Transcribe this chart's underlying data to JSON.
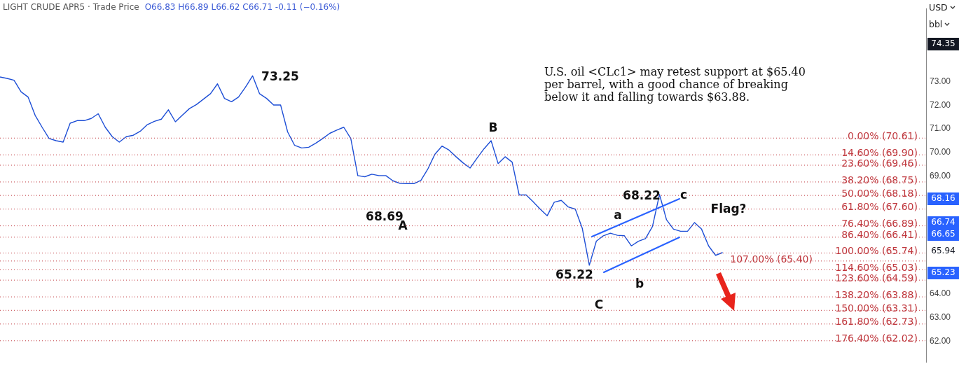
{
  "chart_data": {
    "type": "line",
    "title": "LIGHT CRUDE APR5 · Trade Price",
    "subtitle": "O66.83  H66.89  L66.62  C66.71  -0.11 (−0.16%)",
    "categories": [
      null,
      null,
      null,
      null,
      null,
      null,
      null,
      null,
      null,
      null,
      null,
      null,
      null,
      null,
      null,
      null,
      null,
      null,
      null,
      null,
      null,
      null,
      null,
      null,
      null,
      null,
      null,
      null,
      null,
      null,
      null,
      null,
      null,
      null,
      null,
      null,
      null,
      null,
      null,
      null,
      null,
      null,
      null,
      null,
      null,
      null,
      null,
      null,
      null,
      null,
      null,
      null,
      null,
      null,
      null,
      null,
      null,
      null,
      null,
      null,
      null,
      null,
      null,
      null,
      null,
      null,
      null,
      null,
      null,
      null,
      null,
      null,
      null,
      null,
      null,
      null,
      null,
      null,
      null,
      null,
      null,
      null,
      null,
      null,
      null,
      null,
      null,
      null,
      null,
      null,
      null,
      null,
      null,
      null,
      null,
      null,
      null,
      null,
      null,
      null,
      null,
      null,
      null,
      null,
      null,
      null,
      null,
      null,
      null,
      null,
      null,
      null,
      null,
      null,
      null,
      null,
      null,
      null,
      null,
      null,
      null,
      null,
      null,
      null,
      null,
      null,
      null,
      null,
      null,
      null,
      null,
      null,
      null
    ],
    "ylim": [
      61.1,
      76.1
    ],
    "yticks": [
      {
        "value": 62,
        "label": "62.00"
      },
      {
        "value": 63,
        "label": "63.00"
      },
      {
        "value": 64,
        "label": "64.00"
      },
      {
        "value": 69,
        "label": "69.00"
      },
      {
        "value": 70,
        "label": "70.00"
      },
      {
        "value": 71,
        "label": "71.00"
      },
      {
        "value": 72,
        "label": "72.00"
      },
      {
        "value": 73,
        "label": "73.00"
      }
    ],
    "tick_labels": "y",
    "marker": "none",
    "series": [
      {
        "color": "#1e4fd6",
        "values": [
          73.2,
          73.14,
          73.06,
          72.57,
          72.35,
          71.58,
          71.07,
          70.59,
          70.5,
          70.44,
          71.24,
          71.35,
          71.35,
          71.44,
          71.64,
          71.07,
          70.67,
          70.44,
          70.67,
          70.73,
          70.9,
          71.18,
          71.32,
          71.41,
          71.81,
          71.3,
          71.58,
          71.86,
          72.03,
          72.26,
          72.49,
          72.91,
          72.29,
          72.15,
          72.35,
          72.77,
          73.25,
          72.49,
          72.29,
          72.01,
          72.01,
          70.87,
          70.3,
          70.19,
          70.22,
          70.39,
          70.59,
          70.81,
          70.95,
          71.07,
          70.59,
          69.02,
          68.97,
          69.08,
          69.02,
          69.02,
          68.8,
          68.69,
          68.68,
          68.68,
          68.82,
          69.31,
          69.93,
          70.27,
          70.1,
          69.82,
          69.56,
          69.34,
          69.76,
          70.16,
          70.5,
          69.53,
          69.82,
          69.59,
          68.2,
          68.2,
          67.91,
          67.6,
          67.32,
          67.89,
          67.97,
          67.69,
          67.6,
          66.78,
          65.22,
          66.24,
          66.47,
          66.58,
          66.49,
          66.47,
          66.04,
          66.24,
          66.35,
          66.86,
          68.22,
          67.15,
          66.75,
          66.66,
          66.66,
          67.03,
          66.75,
          66.04,
          65.64,
          65.76,
          null,
          null,
          null,
          null,
          null,
          null,
          null,
          null,
          null,
          null,
          null,
          null,
          null,
          null,
          null,
          null,
          null,
          null,
          null,
          null,
          null,
          null,
          null,
          null,
          null,
          null,
          null,
          null,
          null
        ]
      }
    ],
    "ref_lines": [
      {
        "axis": "y",
        "value": 70.61,
        "label": "0.00% (70.61)",
        "color": "#c0393f",
        "line_style": "dotted"
      },
      {
        "axis": "y",
        "value": 69.9,
        "label": "14.60% (69.90)",
        "color": "#c0393f",
        "line_style": "dotted"
      },
      {
        "axis": "y",
        "value": 69.46,
        "label": "23.60% (69.46)",
        "color": "#c0393f",
        "line_style": "dotted"
      },
      {
        "axis": "y",
        "value": 68.75,
        "label": "38.20% (68.75)",
        "color": "#c0393f",
        "line_style": "dotted"
      },
      {
        "axis": "y",
        "value": 68.18,
        "label": "50.00% (68.18)",
        "color": "#c0393f",
        "line_style": "dotted"
      },
      {
        "axis": "y",
        "value": 67.6,
        "label": "61.80% (67.60)",
        "color": "#c0393f",
        "line_style": "dotted"
      },
      {
        "axis": "y",
        "value": 66.89,
        "label": "76.40% (66.89)",
        "color": "#c0393f",
        "line_style": "dotted"
      },
      {
        "axis": "y",
        "value": 66.41,
        "label": "86.40% (66.41)",
        "color": "#c0393f",
        "line_style": "dotted"
      },
      {
        "axis": "y",
        "value": 65.74,
        "label": "100.00% (65.74)",
        "color": "#c0393f",
        "line_style": "dotted"
      },
      {
        "axis": "y",
        "value": 65.4,
        "label": "107.00% (65.40)",
        "color": "#c0393f",
        "line_style": "dotted"
      },
      {
        "axis": "y",
        "value": 65.03,
        "label": "114.60% (65.03)",
        "color": "#c0393f",
        "line_style": "dotted"
      },
      {
        "axis": "y",
        "value": 64.59,
        "label": "123.60% (64.59)",
        "color": "#c0393f",
        "line_style": "dotted"
      },
      {
        "axis": "y",
        "value": 63.88,
        "label": "138.20% (63.88)",
        "color": "#c0393f",
        "line_style": "dotted"
      },
      {
        "axis": "y",
        "value": 63.31,
        "label": "150.00% (63.31)",
        "color": "#c0393f",
        "line_style": "dotted"
      },
      {
        "axis": "y",
        "value": 62.73,
        "label": "161.80% (62.73)",
        "color": "#c0393f",
        "line_style": "dotted"
      },
      {
        "axis": "y",
        "value": 62.02,
        "label": "176.40% (62.02)",
        "color": "#c0393f",
        "line_style": "dotted"
      }
    ],
    "annotations": [
      "74.35",
      "68.16",
      "66.74",
      "66.65",
      "65.94",
      "65.23",
      "73.25",
      "68.69",
      "A",
      "B",
      "65.22",
      "C",
      "a",
      "b",
      "68.22",
      "c",
      "Flag?",
      "U.S. oil <CLc1> may retest support at $65.40\nper barrel, with a good chance of breaking\nbelow it and falling towards $63.88.",
      "USD",
      "bbl"
    ]
  }
}
